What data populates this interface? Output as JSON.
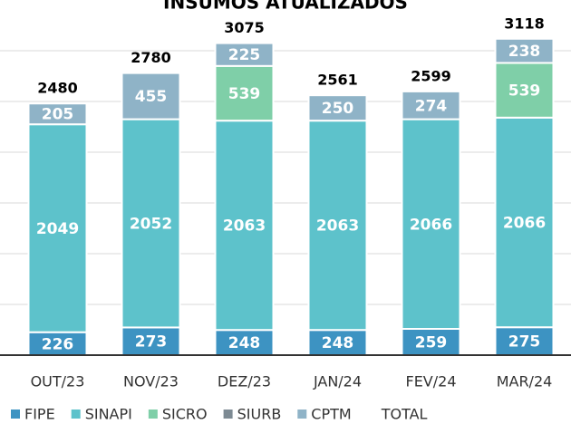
{
  "chart_data": {
    "type": "stacked_bar",
    "title": "INSUMOS ATUALIZADOS",
    "categories": [
      "OUT/23",
      "NOV/23",
      "DEZ/23",
      "JAN/24",
      "FEV/24",
      "MAR/24"
    ],
    "series": [
      {
        "name": "FIPE",
        "color": "#3d93c2",
        "values": [
          226,
          273,
          248,
          248,
          259,
          275
        ]
      },
      {
        "name": "SINAPI",
        "color": "#5dc2cb",
        "values": [
          2049,
          2052,
          2063,
          2063,
          2066,
          2066
        ]
      },
      {
        "name": "SICRO",
        "color": "#7fcfa8",
        "values": [
          null,
          null,
          539,
          null,
          null,
          539
        ]
      },
      {
        "name": "SIURB",
        "color": "#7d8a93",
        "values": [
          null,
          null,
          null,
          null,
          null,
          null
        ]
      },
      {
        "name": "CPTM",
        "color": "#8fb3c7",
        "values": [
          205,
          455,
          225,
          250,
          274,
          238
        ]
      }
    ],
    "totals": {
      "name": "TOTAL",
      "values": [
        2480,
        2780,
        3075,
        2561,
        2599,
        3118
      ]
    },
    "ylim": [
      0,
      3500
    ],
    "yticks": [
      0,
      500,
      1000,
      1500,
      2000,
      2500,
      3000
    ],
    "grid": true
  }
}
